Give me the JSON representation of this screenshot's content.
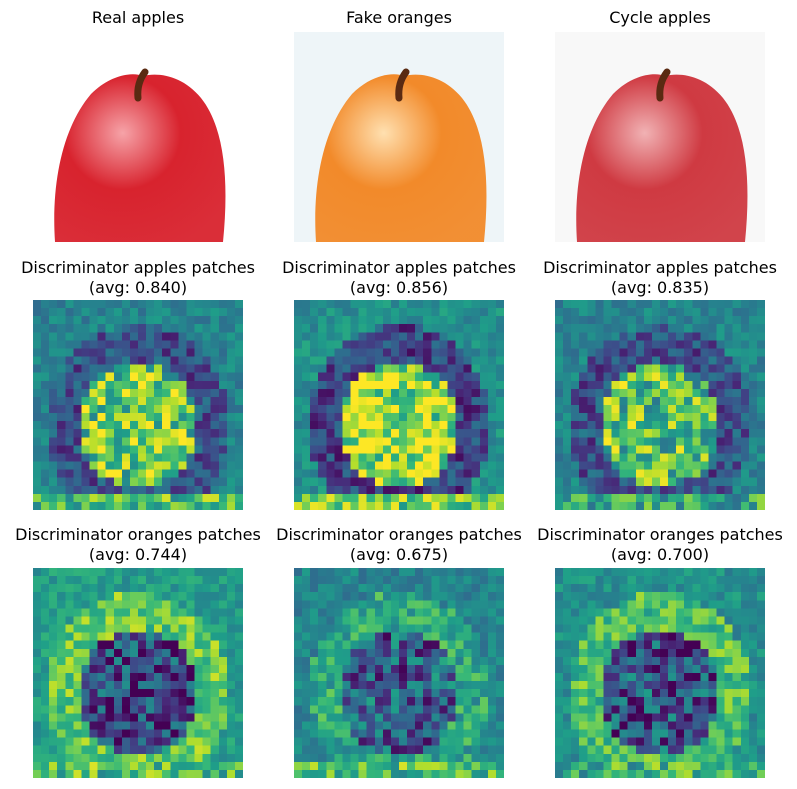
{
  "row1": [
    {
      "title": "Real apples"
    },
    {
      "title": "Fake oranges"
    },
    {
      "title": "Cycle apples"
    }
  ],
  "row2": [
    {
      "title": "Discriminator apples patches",
      "avg": "(avg: 0.840)"
    },
    {
      "title": "Discriminator apples patches",
      "avg": "(avg: 0.856)"
    },
    {
      "title": "Discriminator apples patches",
      "avg": "(avg: 0.835)"
    }
  ],
  "row3": [
    {
      "title": "Discriminator oranges patches",
      "avg": "(avg: 0.744)"
    },
    {
      "title": "Discriminator oranges patches",
      "avg": "(avg: 0.675)"
    },
    {
      "title": "Discriminator oranges patches",
      "avg": "(avg: 0.700)"
    }
  ],
  "photos": [
    {
      "icon": "apple-photo",
      "fruit": "#d8232e",
      "highlight": "#f6a3a8",
      "bg": "#ffffff"
    },
    {
      "icon": "orange-photo",
      "fruit": "#f28a2a",
      "highlight": "#ffe0b0",
      "bg": "#eef5f8"
    },
    {
      "icon": "apple-photo",
      "fruit": "#cf3a42",
      "highlight": "#f1b2b4",
      "bg": "#f8f8f8"
    }
  ],
  "colormap": "viridis"
}
